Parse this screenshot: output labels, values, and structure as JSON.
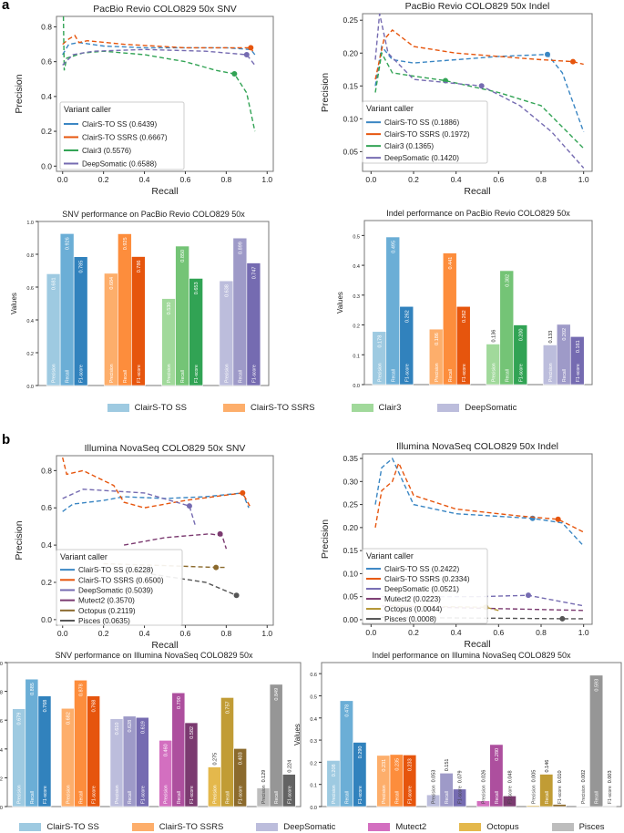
{
  "panel_labels": [
    "a",
    "b"
  ],
  "chart_data": [
    {
      "id": "pr_a_snv",
      "type": "line",
      "title": "PacBio Revio COLO829 50x SNV",
      "xlabel": "Recall",
      "ylabel": "Precision",
      "xlim": [
        -0.03,
        1.03
      ],
      "ylim": [
        -0.03,
        0.86
      ],
      "xticks": [
        0.0,
        0.2,
        0.4,
        0.6,
        0.8,
        1.0
      ],
      "yticks": [
        0.0,
        0.2,
        0.4,
        0.6,
        0.8
      ],
      "legend_title": "Variant caller",
      "legend_placement": "lower-left",
      "series": [
        {
          "name": "ClairS-TO SS (0.6439)",
          "color": "#3a86c3",
          "x": [
            0,
            0.03,
            0.08,
            0.2,
            0.4,
            0.6,
            0.8,
            0.92,
            0.94
          ],
          "y": [
            0.64,
            0.7,
            0.71,
            0.69,
            0.68,
            0.68,
            0.68,
            0.67,
            0.64
          ],
          "marker": null
        },
        {
          "name": "ClairS-TO SSRS (0.6667)",
          "color": "#e6550d",
          "x": [
            0,
            0.03,
            0.06,
            0.08,
            0.12,
            0.3,
            0.6,
            0.8,
            0.92,
            0.93
          ],
          "y": [
            0.7,
            0.73,
            0.75,
            0.71,
            0.72,
            0.7,
            0.68,
            0.68,
            0.68,
            0.66
          ],
          "marker": [
            0.92,
            0.68
          ]
        },
        {
          "name": "Clair3 (0.5576)",
          "color": "#31a354",
          "x": [
            0.004,
            0.008,
            0.02,
            0.1,
            0.2,
            0.4,
            0.6,
            0.75,
            0.84,
            0.9,
            0.94
          ],
          "y": [
            0.92,
            0.55,
            0.62,
            0.65,
            0.66,
            0.64,
            0.6,
            0.55,
            0.53,
            0.42,
            0.2
          ],
          "marker": [
            0.84,
            0.53
          ]
        },
        {
          "name": "DeepSomatic (0.6588)",
          "color": "#756bb1",
          "x": [
            0,
            0.05,
            0.15,
            0.4,
            0.7,
            0.9,
            0.94
          ],
          "y": [
            0.58,
            0.64,
            0.66,
            0.67,
            0.66,
            0.64,
            0.58
          ],
          "marker": [
            0.9,
            0.64
          ]
        }
      ]
    },
    {
      "id": "pr_a_indel",
      "type": "line",
      "title": "PacBio Revio COLO829 50x Indel",
      "xlabel": "Recall",
      "ylabel": "Precision",
      "xlim": [
        -0.04,
        1.04
      ],
      "ylim": [
        0.02,
        0.26
      ],
      "xticks": [
        0.0,
        0.2,
        0.4,
        0.6,
        0.8,
        1.0
      ],
      "yticks": [
        0.05,
        0.1,
        0.15,
        0.2,
        0.25
      ],
      "legend_title": "Variant caller",
      "legend_placement": "lower-left",
      "series": [
        {
          "name": "ClairS-TO SS (0.1886)",
          "color": "#3a86c3",
          "x": [
            0.02,
            0.05,
            0.1,
            0.2,
            0.4,
            0.6,
            0.83,
            0.9,
            1.0
          ],
          "y": [
            0.15,
            0.21,
            0.19,
            0.185,
            0.19,
            0.195,
            0.198,
            0.17,
            0.08
          ],
          "marker": [
            0.83,
            0.198
          ]
        },
        {
          "name": "ClairS-TO SSRS (0.1972)",
          "color": "#e6550d",
          "x": [
            0.02,
            0.06,
            0.1,
            0.2,
            0.4,
            0.6,
            0.8,
            0.95,
            1.0
          ],
          "y": [
            0.16,
            0.22,
            0.235,
            0.21,
            0.2,
            0.195,
            0.19,
            0.187,
            0.183
          ],
          "marker": [
            0.95,
            0.187
          ]
        },
        {
          "name": "Clair3 (0.1365)",
          "color": "#31a354",
          "x": [
            0.02,
            0.05,
            0.1,
            0.2,
            0.35,
            0.6,
            0.8,
            1.0
          ],
          "y": [
            0.14,
            0.2,
            0.17,
            0.165,
            0.158,
            0.14,
            0.12,
            0.055
          ],
          "marker": [
            0.35,
            0.158
          ]
        },
        {
          "name": "DeepSomatic (0.1420)",
          "color": "#756bb1",
          "x": [
            0.02,
            0.04,
            0.08,
            0.2,
            0.52,
            0.7,
            0.85,
            1.0
          ],
          "y": [
            0.19,
            0.26,
            0.2,
            0.16,
            0.15,
            0.12,
            0.08,
            0.025
          ],
          "marker": [
            0.52,
            0.15
          ]
        }
      ]
    },
    {
      "id": "bar_a_snv",
      "type": "bar",
      "title": "SNV performance on PacBio Revio COLO829 50x",
      "ylabel": "Values",
      "ylim": [
        0,
        1.0
      ],
      "yticks": [
        0.0,
        0.2,
        0.4,
        0.6,
        0.8,
        1.0
      ],
      "metrics": [
        "Precision",
        "Recall",
        "F1-score"
      ],
      "groups": [
        {
          "name": "ClairS-TO SS",
          "values": [
            0.681,
            0.926,
            0.785
          ],
          "labels": [
            "0.681",
            "0.926",
            "0.785"
          ]
        },
        {
          "name": "ClairS-TO SSRS",
          "values": [
            0.684,
            0.925,
            0.786
          ],
          "labels": [
            "0.684",
            "0.925",
            "0.786"
          ]
        },
        {
          "name": "Clair3",
          "values": [
            0.53,
            0.85,
            0.653
          ],
          "labels": [
            "0.530",
            "0.850",
            "0.653"
          ]
        },
        {
          "name": "DeepSomatic",
          "values": [
            0.638,
            0.899,
            0.747
          ],
          "labels": [
            "0.638",
            "0.899",
            "0.747"
          ]
        }
      ]
    },
    {
      "id": "bar_a_indel",
      "type": "bar",
      "title": "Indel performance on PacBio Revio COLO829 50x",
      "ylabel": "Values",
      "ylim": [
        0,
        0.55
      ],
      "yticks": [
        0.0,
        0.1,
        0.2,
        0.3,
        0.4,
        0.5
      ],
      "metrics": [
        "Precision",
        "Recall",
        "F1-score"
      ],
      "groups": [
        {
          "name": "ClairS-TO SS",
          "values": [
            0.178,
            0.495,
            0.262
          ],
          "labels": [
            "0.178",
            "0.495",
            "0.262"
          ]
        },
        {
          "name": "ClairS-TO SSRS",
          "values": [
            0.186,
            0.441,
            0.262
          ],
          "labels": [
            "0.186",
            "0.441",
            "0.262"
          ]
        },
        {
          "name": "Clair3",
          "values": [
            0.136,
            0.382,
            0.2
          ],
          "labels": [
            "0.136",
            "0.382",
            "0.200"
          ]
        },
        {
          "name": "DeepSomatic",
          "values": [
            0.133,
            0.202,
            0.161
          ],
          "labels": [
            "0.133",
            "0.202",
            "0.161"
          ]
        }
      ]
    },
    {
      "id": "pr_b_snv",
      "type": "line",
      "title": "Illumina NovaSeq COLO829 50x SNV",
      "xlabel": "Recall",
      "ylabel": "Precision",
      "xlim": [
        -0.03,
        1.03
      ],
      "ylim": [
        -0.03,
        0.88
      ],
      "xticks": [
        0.0,
        0.2,
        0.4,
        0.6,
        0.8,
        1.0
      ],
      "yticks": [
        0.0,
        0.2,
        0.4,
        0.6,
        0.8
      ],
      "legend_title": "Variant caller",
      "legend_placement": "lower-left",
      "series": [
        {
          "name": "ClairS-TO SS (0.6228)",
          "color": "#3a86c3",
          "x": [
            0,
            0.05,
            0.2,
            0.3,
            0.5,
            0.7,
            0.88,
            0.91
          ],
          "y": [
            0.58,
            0.62,
            0.64,
            0.66,
            0.65,
            0.66,
            0.68,
            0.6
          ],
          "marker": null
        },
        {
          "name": "ClairS-TO SSRS (0.6500)",
          "color": "#e6550d",
          "x": [
            0,
            0.02,
            0.1,
            0.25,
            0.3,
            0.4,
            0.6,
            0.88,
            0.92
          ],
          "y": [
            0.87,
            0.78,
            0.8,
            0.72,
            0.63,
            0.6,
            0.64,
            0.68,
            0.6
          ],
          "marker": [
            0.88,
            0.68
          ]
        },
        {
          "name": "DeepSomatic (0.5039)",
          "color": "#756bb1",
          "x": [
            0,
            0.1,
            0.4,
            0.62,
            0.65
          ],
          "y": [
            0.65,
            0.7,
            0.68,
            0.61,
            0.5
          ],
          "marker": [
            0.62,
            0.61
          ]
        },
        {
          "name": "Mutect2 (0.3570)",
          "color": "#7b3a70",
          "x": [
            0.3,
            0.5,
            0.72,
            0.78,
            0.8
          ],
          "y": [
            0.4,
            0.44,
            0.46,
            0.45,
            0.38
          ],
          "marker": [
            0.77,
            0.46
          ]
        },
        {
          "name": "Octopus (0.2119)",
          "color": "#8b6a2d",
          "x": [
            0.2,
            0.5,
            0.75,
            0.8
          ],
          "y": [
            0.3,
            0.29,
            0.28,
            0.28
          ],
          "marker": [
            0.75,
            0.28
          ]
        },
        {
          "name": "Pisces (0.0635)",
          "color": "#555555",
          "x": [
            0.4,
            0.7,
            0.85
          ],
          "y": [
            0.25,
            0.2,
            0.13
          ],
          "marker": [
            0.85,
            0.13
          ]
        }
      ]
    },
    {
      "id": "pr_b_indel",
      "type": "line",
      "title": "Illumina NovaSeq COLO829 50x Indel",
      "xlabel": "Recall",
      "ylabel": "Precision",
      "xlim": [
        -0.04,
        1.04
      ],
      "ylim": [
        -0.01,
        0.36
      ],
      "xticks": [
        0.0,
        0.2,
        0.4,
        0.6,
        0.8,
        1.0
      ],
      "yticks": [
        0.0,
        0.05,
        0.1,
        0.15,
        0.2,
        0.25,
        0.3,
        0.35
      ],
      "legend_title": "Variant caller",
      "legend_placement": "lower-left",
      "series": [
        {
          "name": "ClairS-TO SS (0.2422)",
          "color": "#3a86c3",
          "x": [
            0.02,
            0.05,
            0.1,
            0.15,
            0.2,
            0.4,
            0.76,
            0.9,
            1.0
          ],
          "y": [
            0.25,
            0.33,
            0.35,
            0.3,
            0.25,
            0.23,
            0.22,
            0.21,
            0.16
          ],
          "marker": [
            0.76,
            0.22
          ]
        },
        {
          "name": "ClairS-TO SSRS (0.2334)",
          "color": "#e6550d",
          "x": [
            0.02,
            0.05,
            0.1,
            0.13,
            0.2,
            0.4,
            0.7,
            0.88,
            1.0
          ],
          "y": [
            0.2,
            0.28,
            0.3,
            0.34,
            0.27,
            0.24,
            0.225,
            0.218,
            0.19
          ],
          "marker": [
            0.88,
            0.218
          ]
        },
        {
          "name": "DeepSomatic (0.0521)",
          "color": "#756bb1",
          "x": [
            0.05,
            0.5,
            0.74,
            1.0
          ],
          "y": [
            0.05,
            0.05,
            0.053,
            0.03
          ],
          "marker": [
            0.74,
            0.053
          ]
        },
        {
          "name": "Mutect2 (0.0223)",
          "color": "#7b3a70",
          "x": [
            0.05,
            0.5,
            1.0
          ],
          "y": [
            0.03,
            0.025,
            0.02
          ],
          "marker": null
        },
        {
          "name": "Octopus (0.0044)",
          "color": "#b39432",
          "x": [
            0.1,
            0.54,
            0.6
          ],
          "y": [
            0.03,
            0.027,
            0.02
          ],
          "marker": [
            0.54,
            0.027
          ]
        },
        {
          "name": "Pisces (0.0008)",
          "color": "#555555",
          "x": [
            0.05,
            0.9,
            1.0
          ],
          "y": [
            0.005,
            0.002,
            0.002
          ],
          "marker": [
            0.9,
            0.002
          ]
        }
      ]
    },
    {
      "id": "bar_b_snv",
      "type": "bar",
      "title": "SNV performance on Illumina NovaSeq COLO829 50x",
      "ylabel": "",
      "ylim": [
        0,
        1.0
      ],
      "yticks": [
        0.0,
        0.2,
        0.4,
        0.6,
        0.8,
        1.0
      ],
      "metrics": [
        "Precision",
        "Recall",
        "F1-score"
      ],
      "groups": [
        {
          "name": "ClairS-TO SS",
          "values": [
            0.679,
            0.885,
            0.768
          ],
          "labels": [
            "0.679",
            "0.885",
            "0.768"
          ]
        },
        {
          "name": "ClairS-TO SSRS",
          "values": [
            0.682,
            0.878,
            0.768
          ],
          "labels": [
            "0.682",
            "0.878",
            "0.768"
          ]
        },
        {
          "name": "DeepSomatic",
          "values": [
            0.61,
            0.628,
            0.619
          ],
          "labels": [
            "0.610",
            "0.628",
            "0.619"
          ]
        },
        {
          "name": "Mutect2",
          "values": [
            0.46,
            0.79,
            0.582
          ],
          "labels": [
            "0.460",
            "0.790",
            "0.582"
          ]
        },
        {
          "name": "Octopus",
          "values": [
            0.275,
            0.757,
            0.403
          ],
          "labels": [
            "0.275",
            "0.757",
            "0.403"
          ]
        },
        {
          "name": "Pisces",
          "values": [
            0.129,
            0.849,
            0.224
          ],
          "labels": [
            "0.129",
            "0.849",
            "0.224"
          ]
        }
      ]
    },
    {
      "id": "bar_b_indel",
      "type": "bar",
      "title": "Indel performance on Illumina NovaSeq COLO829 50x",
      "ylabel": "Values",
      "ylim": [
        0,
        0.65
      ],
      "yticks": [
        0.0,
        0.1,
        0.2,
        0.3,
        0.4,
        0.5,
        0.6
      ],
      "metrics": [
        "Precision",
        "Recall",
        "F1-score"
      ],
      "groups": [
        {
          "name": "ClairS-TO SS",
          "values": [
            0.208,
            0.478,
            0.29
          ],
          "labels": [
            "0.208",
            "0.478",
            "0.290"
          ]
        },
        {
          "name": "ClairS-TO SSRS",
          "values": [
            0.231,
            0.235,
            0.233
          ],
          "labels": [
            "0.231",
            "0.235",
            "0.233"
          ]
        },
        {
          "name": "DeepSomatic",
          "values": [
            0.053,
            0.151,
            0.079
          ],
          "labels": [
            "0.053",
            "0.151",
            "0.079"
          ]
        },
        {
          "name": "Mutect2",
          "values": [
            0.026,
            0.28,
            0.048
          ],
          "labels": [
            "0.026",
            "0.280",
            "0.048"
          ]
        },
        {
          "name": "Octopus",
          "values": [
            0.005,
            0.146,
            0.01
          ],
          "labels": [
            "0.005",
            "0.146",
            "0.010"
          ]
        },
        {
          "name": "Pisces",
          "values": [
            0.002,
            0.593,
            0.003
          ],
          "labels": [
            "0.002",
            "0.593",
            "0.003"
          ]
        }
      ]
    }
  ],
  "palettes": {
    "ClairS-TO SS": [
      "#9ecae1",
      "#6baed6",
      "#3182bd"
    ],
    "ClairS-TO SSRS": [
      "#fdae6b",
      "#fd8d3c",
      "#e6550d"
    ],
    "Clair3": [
      "#a1d99b",
      "#74c476",
      "#31a354"
    ],
    "DeepSomatic": [
      "#bcbddc",
      "#9e9ac8",
      "#756bb1"
    ],
    "Mutect2": [
      "#d36fc0",
      "#ad4f9e",
      "#7b3a70"
    ],
    "Octopus": [
      "#e4b84c",
      "#c19c35",
      "#8b6a2d"
    ],
    "Pisces": [
      "#bdbdbd",
      "#969696",
      "#636363"
    ]
  },
  "legend_a": [
    {
      "label": "ClairS-TO SS",
      "color": "#9ecae1"
    },
    {
      "label": "ClairS-TO SSRS",
      "color": "#fdae6b"
    },
    {
      "label": "Clair3",
      "color": "#a1d99b"
    },
    {
      "label": "DeepSomatic",
      "color": "#bcbddc"
    }
  ],
  "legend_b": [
    {
      "label": "ClairS-TO SS",
      "color": "#9ecae1"
    },
    {
      "label": "ClairS-TO SSRS",
      "color": "#fdae6b"
    },
    {
      "label": "DeepSomatic",
      "color": "#bcbddc"
    },
    {
      "label": "Mutect2",
      "color": "#d36fc0"
    },
    {
      "label": "Octopus",
      "color": "#e4b84c"
    },
    {
      "label": "Pisces",
      "color": "#bdbdbd"
    }
  ]
}
